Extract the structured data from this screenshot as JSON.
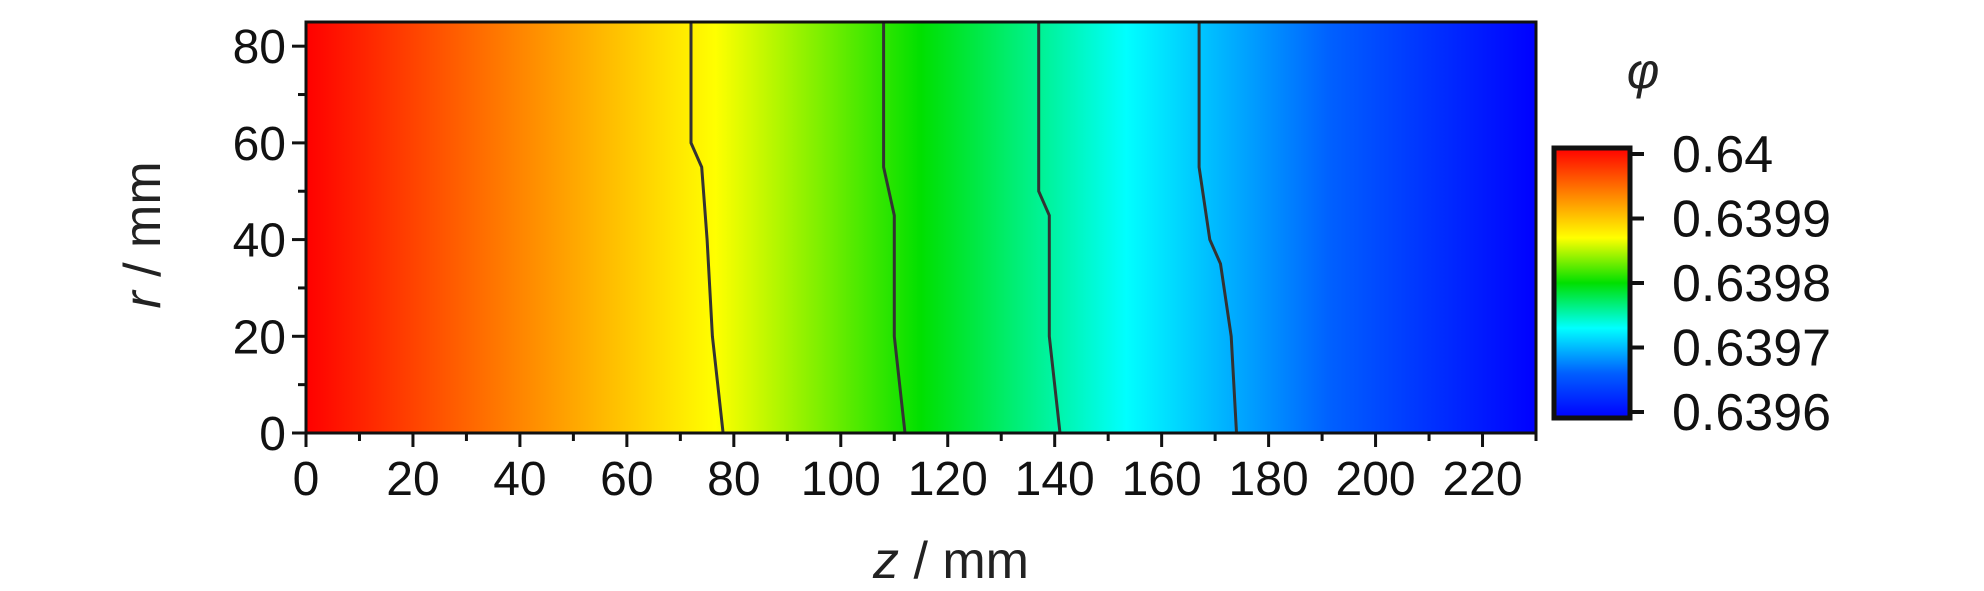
{
  "chart_data": {
    "type": "heatmap",
    "title": "",
    "xlabel": {
      "var": "z",
      "unit": " / mm"
    },
    "ylabel": {
      "var": "r",
      "unit": " / mm"
    },
    "xlim": [
      0,
      230
    ],
    "ylim": [
      0,
      85
    ],
    "xticks": [
      0,
      20,
      40,
      60,
      80,
      100,
      120,
      140,
      160,
      180,
      200,
      220
    ],
    "yticks": [
      0,
      20,
      40,
      60,
      80
    ],
    "colorbar": {
      "label": "φ",
      "min": 0.6396,
      "max": 0.64,
      "ticks": [
        "0.64",
        "0.6399",
        "0.6398",
        "0.6397",
        "0.6396"
      ],
      "colors": [
        "#ff0000",
        "#ff8000",
        "#ffff00",
        "#00e000",
        "#00ffff",
        "#0060ff",
        "#0000ff"
      ]
    },
    "contour_lines": [
      {
        "level": 0.63991,
        "points": [
          [
            72,
            85
          ],
          [
            72,
            60
          ],
          [
            74,
            55
          ],
          [
            75,
            40
          ],
          [
            76,
            20
          ],
          [
            78,
            0
          ]
        ]
      },
      {
        "level": 0.63982,
        "points": [
          [
            108,
            85
          ],
          [
            108,
            55
          ],
          [
            110,
            45
          ],
          [
            110,
            20
          ],
          [
            112,
            0
          ]
        ]
      },
      {
        "level": 0.63973,
        "points": [
          [
            137,
            85
          ],
          [
            137,
            50
          ],
          [
            139,
            45
          ],
          [
            139,
            20
          ],
          [
            141,
            0
          ]
        ]
      },
      {
        "level": 0.63965,
        "points": [
          [
            167,
            85
          ],
          [
            167,
            55
          ],
          [
            169,
            40
          ],
          [
            171,
            35
          ],
          [
            173,
            20
          ],
          [
            174,
            0
          ]
        ]
      }
    ]
  }
}
